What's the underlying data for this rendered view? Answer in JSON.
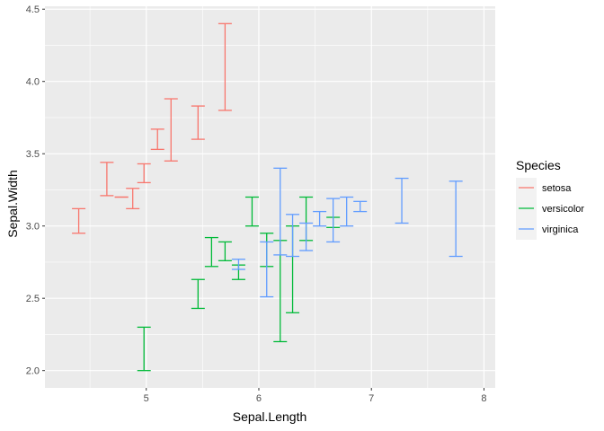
{
  "chart_data": {
    "type": "errorbar",
    "xlabel": "Sepal.Length",
    "ylabel": "Sepal.Width",
    "xlim": [
      4.1,
      8.1
    ],
    "ylim": [
      1.88,
      4.52
    ],
    "x_ticks": [
      5,
      6,
      7,
      8
    ],
    "y_ticks": [
      2.0,
      2.5,
      3.0,
      3.5,
      4.0,
      4.5
    ],
    "y_tick_labels": [
      "2.0",
      "2.5",
      "3.0",
      "3.5",
      "4.0",
      "4.5"
    ],
    "x_tick_labels": [
      "5",
      "6",
      "7",
      "8"
    ],
    "grid": true,
    "legend": {
      "title": "Species",
      "position": "right"
    },
    "series": [
      {
        "name": "setosa",
        "color": "#F8766D",
        "bars": [
          {
            "x": 4.4,
            "ymin": 2.95,
            "ymax": 3.12
          },
          {
            "x": 4.65,
            "ymin": 3.21,
            "ymax": 3.44
          },
          {
            "x": 4.78,
            "ymin": 3.2,
            "ymax": 3.2
          },
          {
            "x": 4.88,
            "ymin": 3.12,
            "ymax": 3.26
          },
          {
            "x": 4.98,
            "ymin": 3.3,
            "ymax": 3.43
          },
          {
            "x": 5.1,
            "ymin": 3.53,
            "ymax": 3.67
          },
          {
            "x": 5.22,
            "ymin": 3.45,
            "ymax": 3.88
          },
          {
            "x": 5.46,
            "ymin": 3.6,
            "ymax": 3.83
          },
          {
            "x": 5.7,
            "ymin": 3.8,
            "ymax": 4.4
          }
        ]
      },
      {
        "name": "versicolor",
        "color": "#00BA38",
        "bars": [
          {
            "x": 4.98,
            "ymin": 2.0,
            "ymax": 2.3
          },
          {
            "x": 5.46,
            "ymin": 2.43,
            "ymax": 2.63
          },
          {
            "x": 5.58,
            "ymin": 2.72,
            "ymax": 2.92
          },
          {
            "x": 5.7,
            "ymin": 2.76,
            "ymax": 2.89
          },
          {
            "x": 5.82,
            "ymin": 2.63,
            "ymax": 2.73
          },
          {
            "x": 5.94,
            "ymin": 3.0,
            "ymax": 3.2
          },
          {
            "x": 6.07,
            "ymin": 2.72,
            "ymax": 2.95
          },
          {
            "x": 6.19,
            "ymin": 2.2,
            "ymax": 2.9
          },
          {
            "x": 6.3,
            "ymin": 2.4,
            "ymax": 3.0
          },
          {
            "x": 6.42,
            "ymin": 2.9,
            "ymax": 3.2
          },
          {
            "x": 6.66,
            "ymin": 2.99,
            "ymax": 3.06
          }
        ]
      },
      {
        "name": "virginica",
        "color": "#619CFF",
        "bars": [
          {
            "x": 5.82,
            "ymin": 2.7,
            "ymax": 2.77
          },
          {
            "x": 6.07,
            "ymin": 2.51,
            "ymax": 2.89
          },
          {
            "x": 6.19,
            "ymin": 2.8,
            "ymax": 3.4
          },
          {
            "x": 6.3,
            "ymin": 2.79,
            "ymax": 3.08
          },
          {
            "x": 6.42,
            "ymin": 2.83,
            "ymax": 3.02
          },
          {
            "x": 6.54,
            "ymin": 3.0,
            "ymax": 3.1
          },
          {
            "x": 6.66,
            "ymin": 2.89,
            "ymax": 3.19
          },
          {
            "x": 6.78,
            "ymin": 3.0,
            "ymax": 3.2
          },
          {
            "x": 6.9,
            "ymin": 3.1,
            "ymax": 3.17
          },
          {
            "x": 7.27,
            "ymin": 3.02,
            "ymax": 3.33
          },
          {
            "x": 7.75,
            "ymin": 2.79,
            "ymax": 3.31
          }
        ]
      }
    ]
  }
}
